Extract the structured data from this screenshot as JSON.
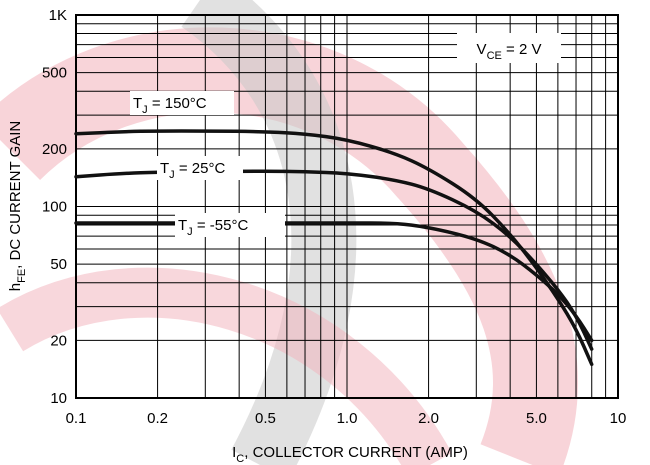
{
  "chart_data": {
    "type": "line",
    "xscale": "log",
    "yscale": "log",
    "xlim": [
      0.1,
      10
    ],
    "ylim": [
      10,
      1000
    ],
    "grid": true,
    "xlabel_main": "I",
    "xlabel_sub": "C",
    "xlabel_rest": ", COLLECTOR CURRENT (AMP)",
    "ylabel_main": "h",
    "ylabel_sub": "FE",
    "ylabel_rest": ", DC CURRENT GAIN",
    "xticks": [
      {
        "value": 0.1,
        "label": "0.1"
      },
      {
        "value": 0.2,
        "label": "0.2"
      },
      {
        "value": 0.5,
        "label": "0.5"
      },
      {
        "value": 1.0,
        "label": "1.0"
      },
      {
        "value": 2.0,
        "label": "2.0"
      },
      {
        "value": 5.0,
        "label": "5.0"
      },
      {
        "value": 10,
        "label": "10"
      }
    ],
    "yticks": [
      {
        "value": 10,
        "label": "10"
      },
      {
        "value": 20,
        "label": "20"
      },
      {
        "value": 50,
        "label": "50"
      },
      {
        "value": 100,
        "label": "100"
      },
      {
        "value": 200,
        "label": "200"
      },
      {
        "value": 500,
        "label": "500"
      },
      {
        "value": 1000,
        "label": "1K"
      }
    ],
    "condition": {
      "main": "V",
      "sub": "CE",
      "rest": " = 2 V"
    },
    "series": [
      {
        "name_main": "T",
        "name_sub": "J",
        "name_rest": " = 150°C",
        "x": [
          0.1,
          0.15,
          0.2,
          0.3,
          0.5,
          0.7,
          1.0,
          1.5,
          2.0,
          3.0,
          4.0,
          5.0,
          6.0,
          7.0,
          8.0
        ],
        "y": [
          240,
          246,
          248,
          248,
          246,
          240,
          224,
          190,
          158,
          110,
          72,
          48,
          33,
          23,
          15
        ]
      },
      {
        "name_main": "T",
        "name_sub": "J",
        "name_rest": " = 25°C",
        "x": [
          0.1,
          0.15,
          0.2,
          0.3,
          0.5,
          0.7,
          1.0,
          1.5,
          2.0,
          3.0,
          4.0,
          5.0,
          6.0,
          7.0,
          8.0
        ],
        "y": [
          143,
          149,
          151,
          152,
          153,
          152,
          149,
          138,
          124,
          95,
          70,
          50,
          37,
          27,
          18
        ]
      },
      {
        "name_main": "T",
        "name_sub": "J",
        "name_rest": " = -55°C",
        "x": [
          0.1,
          0.2,
          0.5,
          1.0,
          1.5,
          2.0,
          3.0,
          4.0,
          5.0,
          6.0,
          7.0,
          8.0
        ],
        "y": [
          82,
          82,
          82,
          82,
          82,
          78,
          68,
          56,
          44,
          35,
          27,
          20
        ]
      }
    ]
  }
}
